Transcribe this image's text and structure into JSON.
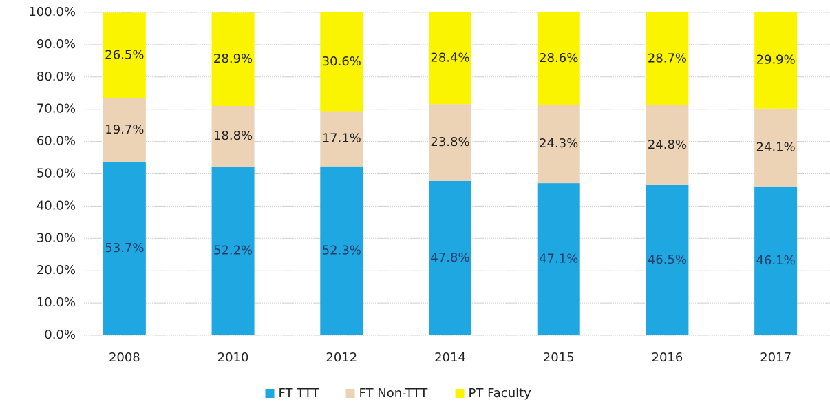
{
  "chart_data": {
    "type": "stacked_bar",
    "categories": [
      "2008",
      "2010",
      "2012",
      "2014",
      "2015",
      "2016",
      "2017"
    ],
    "series": [
      {
        "name": "FT TTT",
        "color": "#1ea7e1",
        "values": [
          53.7,
          52.2,
          52.3,
          47.8,
          47.1,
          46.5,
          46.1
        ],
        "value_labels": [
          "53.7%",
          "52.2%",
          "52.3%",
          "47.8%",
          "47.1%",
          "46.5%",
          "46.1%"
        ]
      },
      {
        "name": "FT Non-TTT",
        "color": "#ecd3b6",
        "values": [
          19.7,
          18.8,
          17.1,
          23.8,
          24.3,
          24.8,
          24.1
        ],
        "value_labels": [
          "19.7%",
          "18.8%",
          "17.1%",
          "23.8%",
          "24.3%",
          "24.8%",
          "24.1%"
        ]
      },
      {
        "name": "PT Faculty",
        "color": "#fbf400",
        "values": [
          26.5,
          28.9,
          30.6,
          28.4,
          28.6,
          28.7,
          29.9
        ],
        "value_labels": [
          "26.5%",
          "28.9%",
          "30.6%",
          "28.4%",
          "28.6%",
          "28.7%",
          "29.9%"
        ]
      }
    ],
    "ylim": [
      0,
      100
    ],
    "yticks": [
      {
        "value": 0,
        "label": "0.0%"
      },
      {
        "value": 10,
        "label": "10.0%"
      },
      {
        "value": 20,
        "label": "20.0%"
      },
      {
        "value": 30,
        "label": "30.0%"
      },
      {
        "value": 40,
        "label": "40.0%"
      },
      {
        "value": 50,
        "label": "50.0%"
      },
      {
        "value": 60,
        "label": "60.0%"
      },
      {
        "value": 70,
        "label": "70.0%"
      },
      {
        "value": 80,
        "label": "80.0%"
      },
      {
        "value": 90,
        "label": "90.0%"
      },
      {
        "value": 100,
        "label": "100.0%"
      }
    ],
    "grid": true,
    "legend": "bottom"
  }
}
